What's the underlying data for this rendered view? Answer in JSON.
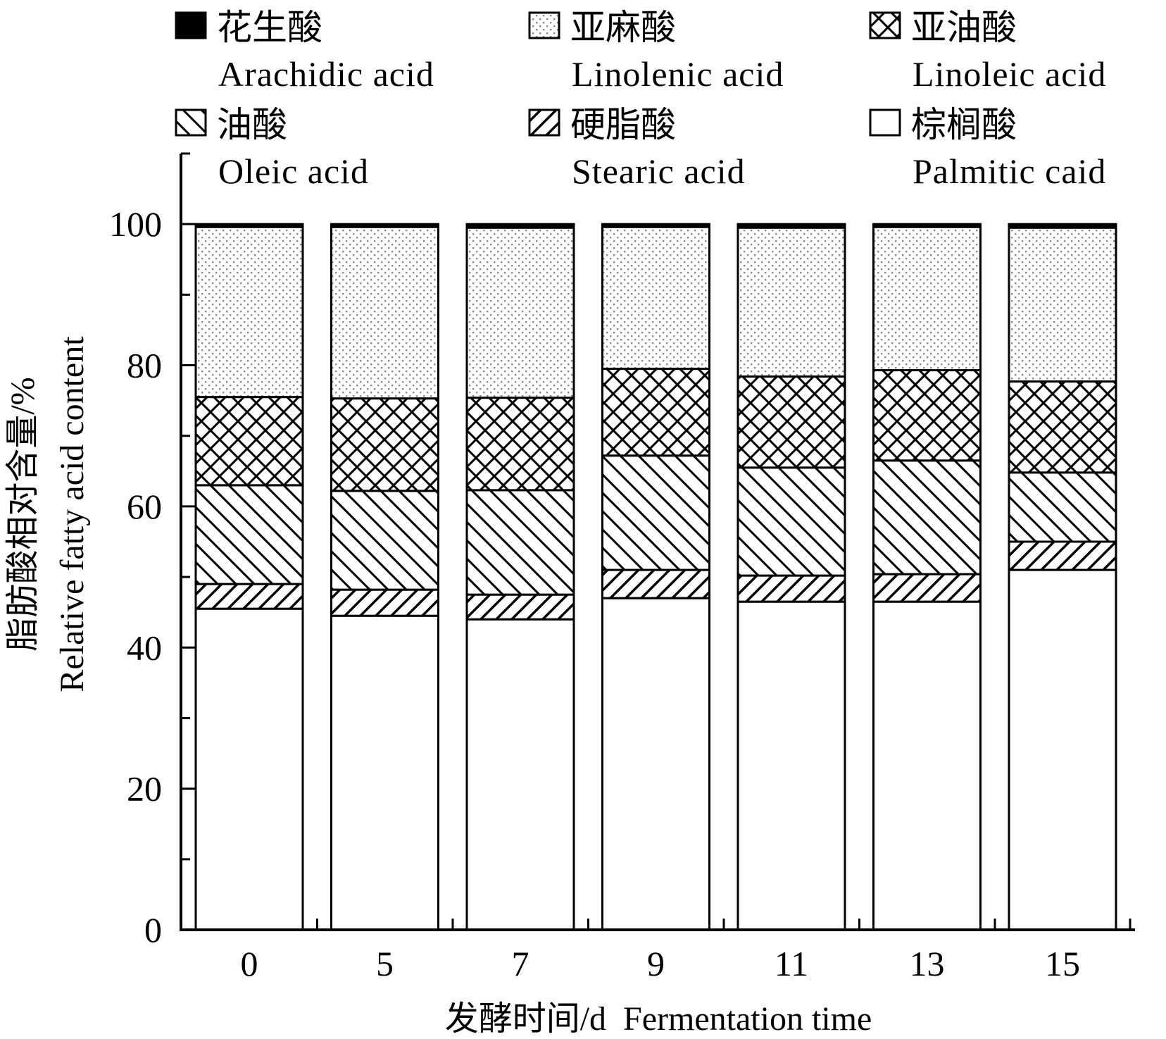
{
  "chart_data": {
    "type": "bar",
    "stacked": true,
    "categories": [
      "0",
      "5",
      "7",
      "9",
      "11",
      "13",
      "15"
    ],
    "series": [
      {
        "name": "棕榈酸",
        "name_en": "Palmitic caid",
        "pattern": "blank",
        "values": [
          45.5,
          44.5,
          44.0,
          47.0,
          46.5,
          46.5,
          51.0
        ]
      },
      {
        "name": "硬脂酸",
        "name_en": "Stearic acid",
        "pattern": "forward-hatch",
        "values": [
          3.5,
          3.7,
          3.5,
          4.0,
          3.7,
          3.9,
          4.0
        ]
      },
      {
        "name": "油酸",
        "name_en": "Oleic acid",
        "pattern": "back-hatch",
        "values": [
          14.0,
          14.0,
          14.8,
          16.2,
          15.3,
          16.1,
          9.8
        ]
      },
      {
        "name": "亚油酸",
        "name_en": "Linoleic acid",
        "pattern": "crosshatch",
        "values": [
          12.5,
          13.1,
          13.1,
          12.3,
          12.9,
          12.8,
          12.9
        ]
      },
      {
        "name": "亚麻酸",
        "name_en": "Linolenic acid",
        "pattern": "dotted",
        "values": [
          24.1,
          24.3,
          24.1,
          20.1,
          21.1,
          20.3,
          21.8
        ]
      },
      {
        "name": "花生酸",
        "name_en": "Arachidic acid",
        "pattern": "solid",
        "values": [
          0.4,
          0.4,
          0.5,
          0.4,
          0.5,
          0.4,
          0.5
        ]
      }
    ],
    "xlabel": "发酵时间/d  Fermentation time",
    "ylabel_cn": "脂肪酸相对含量/%",
    "ylabel_en": "Relative fatty acid content",
    "ylim": [
      0,
      110
    ],
    "yticks": [
      0,
      20,
      40,
      60,
      80,
      100
    ],
    "grid": false,
    "legend_position": "top",
    "legend_order": [
      "花生酸",
      "亚麻酸",
      "亚油酸",
      "油酸",
      "硬脂酸",
      "棕榈酸"
    ]
  }
}
